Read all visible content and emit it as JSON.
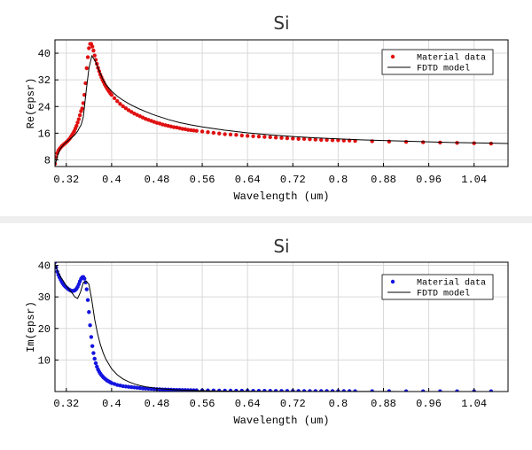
{
  "chart_data": [
    {
      "type": "scatter",
      "title": "Si",
      "xlabel": "Wavelength (um)",
      "ylabel": "Re(epsr)",
      "xlim": [
        0.3,
        1.1
      ],
      "ylim": [
        6,
        44
      ],
      "xticks": [
        0.32,
        0.4,
        0.48,
        0.56,
        0.64,
        0.72,
        0.8,
        0.88,
        0.96,
        1.04
      ],
      "xtick_labels": [
        "0.32",
        "0.4",
        "0.48",
        "0.56",
        "0.64",
        "0.72",
        "0.8",
        "0.88",
        "0.96",
        "1.04"
      ],
      "yticks": [
        8,
        16,
        24,
        32,
        40
      ],
      "ytick_labels": [
        "8",
        "16",
        "24",
        "32",
        "40"
      ],
      "grid": true,
      "legend_position": "top-right",
      "series": [
        {
          "name": "Material data",
          "style": "markers",
          "color": "#e01010",
          "x": [
            0.3,
            0.302,
            0.304,
            0.306,
            0.308,
            0.31,
            0.312,
            0.314,
            0.316,
            0.318,
            0.32,
            0.322,
            0.324,
            0.326,
            0.328,
            0.33,
            0.332,
            0.334,
            0.336,
            0.338,
            0.34,
            0.342,
            0.344,
            0.346,
            0.348,
            0.35,
            0.352,
            0.354,
            0.356,
            0.358,
            0.36,
            0.362,
            0.364,
            0.366,
            0.368,
            0.37,
            0.372,
            0.374,
            0.376,
            0.378,
            0.38,
            0.382,
            0.384,
            0.386,
            0.388,
            0.39,
            0.392,
            0.394,
            0.396,
            0.398,
            0.4,
            0.405,
            0.41,
            0.415,
            0.42,
            0.425,
            0.43,
            0.435,
            0.44,
            0.445,
            0.45,
            0.455,
            0.46,
            0.465,
            0.47,
            0.475,
            0.48,
            0.485,
            0.49,
            0.495,
            0.5,
            0.505,
            0.51,
            0.515,
            0.52,
            0.525,
            0.53,
            0.535,
            0.54,
            0.545,
            0.55,
            0.56,
            0.57,
            0.58,
            0.59,
            0.6,
            0.61,
            0.62,
            0.63,
            0.64,
            0.65,
            0.66,
            0.67,
            0.68,
            0.69,
            0.7,
            0.71,
            0.72,
            0.73,
            0.74,
            0.75,
            0.76,
            0.77,
            0.78,
            0.79,
            0.8,
            0.81,
            0.82,
            0.83,
            0.86,
            0.89,
            0.92,
            0.95,
            0.98,
            1.01,
            1.04,
            1.07
          ],
          "y": [
            6.8,
            8.8,
            10.0,
            10.8,
            11.3,
            11.7,
            12.1,
            12.4,
            12.7,
            13.0,
            13.3,
            13.6,
            14.0,
            14.4,
            14.9,
            15.4,
            16.0,
            16.6,
            17.4,
            18.2,
            19.2,
            20.2,
            21.4,
            22.6,
            23.4,
            25.0,
            27.5,
            31.0,
            35.5,
            38.8,
            41.5,
            42.8,
            42.8,
            42.0,
            40.8,
            39.3,
            38.0,
            36.8,
            35.6,
            34.6,
            33.6,
            32.8,
            32.0,
            31.3,
            30.6,
            30.0,
            29.4,
            28.9,
            28.4,
            27.9,
            27.5,
            26.5,
            25.6,
            24.8,
            24.1,
            23.5,
            22.9,
            22.4,
            21.9,
            21.5,
            21.1,
            20.7,
            20.3,
            20.0,
            19.7,
            19.4,
            19.1,
            18.9,
            18.6,
            18.4,
            18.2,
            18.0,
            17.8,
            17.7,
            17.5,
            17.3,
            17.2,
            17.0,
            16.9,
            16.8,
            16.7,
            16.5,
            16.3,
            16.1,
            15.9,
            15.7,
            15.6,
            15.5,
            15.3,
            15.2,
            15.1,
            15.0,
            14.9,
            14.8,
            14.7,
            14.6,
            14.5,
            14.4,
            14.3,
            14.3,
            14.2,
            14.1,
            14.0,
            14.0,
            13.9,
            13.9,
            13.8,
            13.8,
            13.7,
            13.6,
            13.5,
            13.4,
            13.3,
            13.2,
            13.1,
            13.0,
            12.9
          ]
        },
        {
          "name": "FDTD model",
          "style": "line",
          "color": "#000000",
          "x": [
            0.3,
            0.305,
            0.31,
            0.315,
            0.32,
            0.325,
            0.33,
            0.335,
            0.34,
            0.343,
            0.346,
            0.35,
            0.355,
            0.36,
            0.365,
            0.37,
            0.375,
            0.38,
            0.385,
            0.39,
            0.4,
            0.41,
            0.42,
            0.43,
            0.44,
            0.45,
            0.46,
            0.47,
            0.48,
            0.5,
            0.52,
            0.54,
            0.56,
            0.58,
            0.6,
            0.64,
            0.68,
            0.72,
            0.76,
            0.8,
            0.84,
            0.88,
            0.92,
            0.96,
            1.0,
            1.04,
            1.1
          ],
          "y": [
            6.3,
            9.5,
            11.5,
            12.5,
            13.3,
            14.0,
            14.7,
            15.5,
            16.6,
            17.6,
            18.4,
            20.8,
            28.5,
            35.5,
            39.2,
            38.0,
            36.0,
            34.0,
            32.0,
            30.6,
            28.6,
            27.1,
            25.9,
            24.9,
            24.0,
            23.2,
            22.5,
            21.8,
            21.2,
            20.1,
            19.2,
            18.5,
            17.9,
            17.4,
            16.9,
            16.1,
            15.5,
            15.0,
            14.6,
            14.3,
            14.0,
            13.8,
            13.6,
            13.4,
            13.2,
            13.1,
            12.9
          ]
        }
      ]
    },
    {
      "type": "scatter",
      "title": "Si",
      "xlabel": "Wavelength (um)",
      "ylabel": "Im(epsr)",
      "xlim": [
        0.3,
        1.1
      ],
      "ylim": [
        0,
        41
      ],
      "xticks": [
        0.32,
        0.4,
        0.48,
        0.56,
        0.64,
        0.72,
        0.8,
        0.88,
        0.96,
        1.04
      ],
      "xtick_labels": [
        "0.32",
        "0.4",
        "0.48",
        "0.56",
        "0.64",
        "0.72",
        "0.8",
        "0.88",
        "0.96",
        "1.04"
      ],
      "yticks": [
        10,
        20,
        30,
        40
      ],
      "ytick_labels": [
        "10",
        "20",
        "30",
        "40"
      ],
      "grid": true,
      "legend_position": "top-right",
      "series": [
        {
          "name": "Material data",
          "style": "markers",
          "color": "#1414e0",
          "x": [
            0.3,
            0.302,
            0.304,
            0.306,
            0.308,
            0.31,
            0.312,
            0.314,
            0.316,
            0.318,
            0.32,
            0.322,
            0.324,
            0.326,
            0.328,
            0.33,
            0.332,
            0.334,
            0.336,
            0.338,
            0.34,
            0.342,
            0.344,
            0.346,
            0.348,
            0.35,
            0.352,
            0.354,
            0.356,
            0.358,
            0.36,
            0.362,
            0.364,
            0.366,
            0.368,
            0.37,
            0.372,
            0.374,
            0.376,
            0.378,
            0.38,
            0.382,
            0.384,
            0.386,
            0.388,
            0.39,
            0.392,
            0.394,
            0.396,
            0.398,
            0.4,
            0.405,
            0.41,
            0.415,
            0.42,
            0.425,
            0.43,
            0.435,
            0.44,
            0.445,
            0.45,
            0.455,
            0.46,
            0.465,
            0.47,
            0.475,
            0.48,
            0.485,
            0.49,
            0.495,
            0.5,
            0.505,
            0.51,
            0.515,
            0.52,
            0.525,
            0.53,
            0.535,
            0.54,
            0.545,
            0.55,
            0.56,
            0.57,
            0.58,
            0.59,
            0.6,
            0.61,
            0.62,
            0.63,
            0.64,
            0.65,
            0.66,
            0.67,
            0.68,
            0.69,
            0.7,
            0.71,
            0.72,
            0.73,
            0.74,
            0.75,
            0.76,
            0.77,
            0.78,
            0.79,
            0.8,
            0.81,
            0.82,
            0.83,
            0.86,
            0.89,
            0.92,
            0.95,
            0.98,
            1.01,
            1.04,
            1.07
          ],
          "y": [
            41.0,
            39.3,
            38.0,
            37.0,
            36.2,
            35.5,
            34.8,
            34.2,
            33.7,
            33.3,
            33.0,
            32.7,
            32.4,
            32.2,
            32.0,
            31.9,
            31.9,
            32.0,
            32.2,
            32.6,
            33.2,
            34.0,
            34.9,
            35.7,
            36.2,
            36.3,
            35.8,
            34.6,
            32.4,
            29.0,
            25.2,
            21.0,
            17.3,
            14.4,
            12.2,
            10.4,
            9.0,
            7.9,
            7.0,
            6.3,
            5.7,
            5.2,
            4.8,
            4.4,
            4.1,
            3.8,
            3.5,
            3.3,
            3.1,
            2.9,
            2.7,
            2.4,
            2.1,
            1.9,
            1.7,
            1.6,
            1.5,
            1.4,
            1.3,
            1.2,
            1.1,
            1.0,
            0.95,
            0.9,
            0.85,
            0.8,
            0.75,
            0.7,
            0.66,
            0.63,
            0.6,
            0.57,
            0.54,
            0.52,
            0.5,
            0.48,
            0.46,
            0.44,
            0.42,
            0.41,
            0.4,
            0.37,
            0.35,
            0.33,
            0.31,
            0.29,
            0.28,
            0.27,
            0.26,
            0.25,
            0.24,
            0.23,
            0.22,
            0.21,
            0.2,
            0.2,
            0.19,
            0.18,
            0.18,
            0.17,
            0.17,
            0.16,
            0.16,
            0.15,
            0.15,
            0.14,
            0.14,
            0.14,
            0.13,
            0.12,
            0.11,
            0.1,
            0.1,
            0.09,
            0.09,
            0.08,
            0.08
          ]
        },
        {
          "name": "FDTD model",
          "style": "line",
          "color": "#000000",
          "x": [
            0.3,
            0.305,
            0.31,
            0.315,
            0.32,
            0.325,
            0.33,
            0.335,
            0.34,
            0.345,
            0.35,
            0.355,
            0.36,
            0.365,
            0.37,
            0.375,
            0.38,
            0.385,
            0.39,
            0.4,
            0.41,
            0.42,
            0.43,
            0.44,
            0.45,
            0.46,
            0.48,
            0.5,
            0.52,
            0.54,
            0.56,
            0.6,
            0.64,
            0.68,
            0.72,
            0.76,
            0.8,
            0.84,
            0.88,
            0.92,
            0.96,
            1.0,
            1.04,
            1.1
          ],
          "y": [
            40.5,
            38.0,
            36.3,
            35.0,
            33.5,
            32.3,
            31.3,
            30.0,
            29.5,
            31.5,
            34.5,
            35.0,
            34.0,
            29.0,
            23.0,
            18.5,
            15.0,
            12.3,
            10.2,
            7.2,
            5.3,
            4.0,
            3.1,
            2.4,
            1.9,
            1.5,
            1.0,
            0.7,
            0.5,
            0.35,
            0.25,
            0.15,
            0.1,
            0.07,
            0.05,
            0.04,
            0.03,
            0.02,
            0.02,
            0.01,
            0.01,
            0.01,
            0.01,
            0.0
          ]
        }
      ]
    }
  ]
}
